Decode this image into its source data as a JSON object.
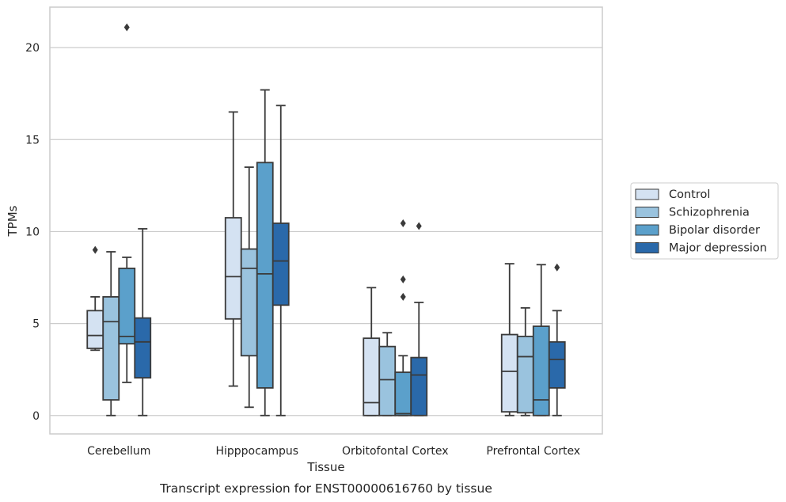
{
  "chart_data": {
    "type": "box",
    "caption": "Transcript expression for ENST00000616760 by tissue",
    "xlabel": "Tissue",
    "ylabel": "TPMs",
    "ylim": [
      -1,
      22.2
    ],
    "yticks": [
      0,
      5,
      10,
      15,
      20
    ],
    "grid": true,
    "legend_position": "right",
    "categories": [
      "Cerebellum",
      "Hipppocampus",
      "Orbitofontal Cortex",
      "Prefrontal Cortex"
    ],
    "series": [
      {
        "name": "Control",
        "color": "#d4e2f2",
        "boxes": [
          {
            "q1": 3.65,
            "median": 4.35,
            "q3": 5.7,
            "whisker_low": 3.55,
            "whisker_high": 6.45,
            "outliers": [
              9.0
            ]
          },
          {
            "q1": 5.25,
            "median": 7.55,
            "q3": 10.75,
            "whisker_low": 1.6,
            "whisker_high": 16.5,
            "outliers": []
          },
          {
            "q1": 0.0,
            "median": 0.7,
            "q3": 4.2,
            "whisker_low": 0.0,
            "whisker_high": 6.95,
            "outliers": []
          },
          {
            "q1": 0.2,
            "median": 2.4,
            "q3": 4.4,
            "whisker_low": 0.0,
            "whisker_high": 8.25,
            "outliers": []
          }
        ]
      },
      {
        "name": "Schizophrenia",
        "color": "#9ac3de",
        "boxes": [
          {
            "q1": 0.85,
            "median": 5.1,
            "q3": 6.45,
            "whisker_low": 0.0,
            "whisker_high": 8.9,
            "outliers": []
          },
          {
            "q1": 3.25,
            "median": 8.0,
            "q3": 9.05,
            "whisker_low": 0.45,
            "whisker_high": 13.5,
            "outliers": []
          },
          {
            "q1": 0.0,
            "median": 1.95,
            "q3": 3.75,
            "whisker_low": 0.0,
            "whisker_high": 4.5,
            "outliers": []
          },
          {
            "q1": 0.15,
            "median": 3.2,
            "q3": 4.3,
            "whisker_low": 0.0,
            "whisker_high": 5.85,
            "outliers": []
          }
        ]
      },
      {
        "name": "Bipolar disorder",
        "color": "#5ba0cb",
        "boxes": [
          {
            "q1": 3.9,
            "median": 4.3,
            "q3": 8.0,
            "whisker_low": 1.8,
            "whisker_high": 8.6,
            "outliers": [
              21.1
            ]
          },
          {
            "q1": 1.5,
            "median": 7.7,
            "q3": 13.75,
            "whisker_low": 0.0,
            "whisker_high": 17.7,
            "outliers": []
          },
          {
            "q1": 0.0,
            "median": 0.1,
            "q3": 2.35,
            "whisker_low": 0.0,
            "whisker_high": 3.25,
            "outliers": [
              10.45,
              7.4,
              6.45
            ]
          },
          {
            "q1": 0.0,
            "median": 0.85,
            "q3": 4.85,
            "whisker_low": 0.0,
            "whisker_high": 8.2,
            "outliers": []
          }
        ]
      },
      {
        "name": "Major depression",
        "color": "#2a69aa",
        "boxes": [
          {
            "q1": 2.05,
            "median": 4.0,
            "q3": 5.3,
            "whisker_low": 0.0,
            "whisker_high": 10.15,
            "outliers": []
          },
          {
            "q1": 6.0,
            "median": 8.4,
            "q3": 10.45,
            "whisker_low": 0.0,
            "whisker_high": 16.85,
            "outliers": []
          },
          {
            "q1": 0.0,
            "median": 2.2,
            "q3": 3.15,
            "whisker_low": 0.0,
            "whisker_high": 6.15,
            "outliers": [
              10.3
            ]
          },
          {
            "q1": 1.5,
            "median": 3.05,
            "q3": 4.0,
            "whisker_low": 0.0,
            "whisker_high": 5.7,
            "outliers": [
              8.05
            ]
          }
        ]
      }
    ]
  }
}
